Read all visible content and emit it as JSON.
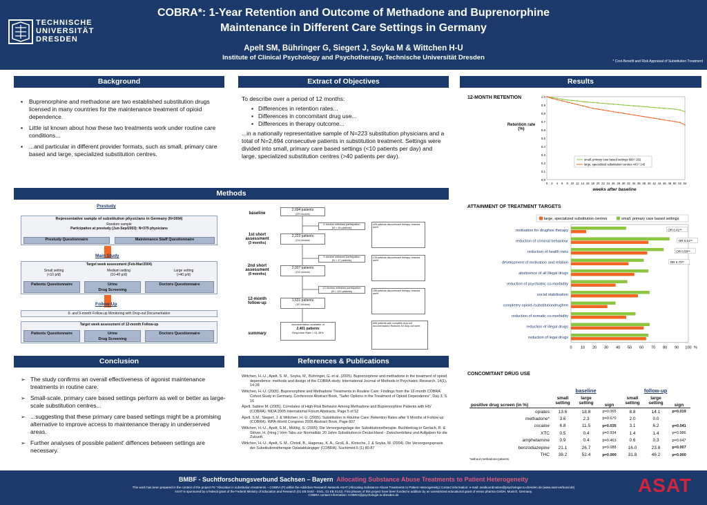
{
  "header": {
    "logo_lines": [
      "TECHNISCHE",
      "UNIVERSITÄT",
      "DRESDEN"
    ],
    "title_line1": "COBRA*: 1-Year Retention and Outcome of Methadone and Buprenorphine",
    "title_line2": "Maintenance in Different Care Settings in Germany",
    "authors": "Apelt SM, Bühringer G, Siegert J, Soyka M &  Wittchen H-U",
    "institute": "Institute of Clinical Psychology and Psychotherapy, Technische Universität Dresden",
    "footnote": "* Cost-Benefit and Risk Appraisal of Substitution Treatment"
  },
  "background": {
    "title": "Background",
    "bullets": [
      "Buprenorphine and methadone are two established substitution drugs licensed in many countries for the maintenance treatment of opioid dependence.",
      "Little ist known about how these two treatments work under routine care conditions...",
      "...and particular in different provider formats, such as small, primary care based and large, specialized substitution centres."
    ]
  },
  "objectives": {
    "title": "Extract of Objectives",
    "intro": "To describe over a period of 12 months:",
    "items": [
      "Differences in retention rates...",
      "Differences in concomitant drug use...",
      "Differences in therapy outcome..."
    ],
    "text": "...in a nationally representative sample of N=223 substitution physicians and a total of N=2,694 consecutive patients in substitution treatment. Settings were divided into small, primary care based settings (<10 patients per day) and large, specialized substitution centres (>40 patients per day)."
  },
  "methods": {
    "title": "Methods",
    "prestudy": "Prestudy",
    "rep_sample_title": "Representative sample of substitution physicians in Germany",
    "rep_sample_n": "(N=2694)",
    "random_sample": "Random sample",
    "participation": "Participation at prestudy (Jun-Sep/2003): N=379 physicians",
    "prestudy_q": "Prestudy Questionnaire",
    "maintenance_q": "Maintenance Staff Questionnaire",
    "mainstudy": "Main Study",
    "target_week": "Target week assessment (Feb-Mar/2004)",
    "small_setting": "Small setting",
    "small_n": "(<10 p/d)",
    "medium_setting": "Medium setting",
    "medium_n": "(10-40 p/d)",
    "large_setting": "Large setting",
    "large_n": "(>40 p/d)",
    "patients_q": "Patients Questionnaire",
    "urine": "Urine",
    "drug_screening": "Drug Screening",
    "doctors_q": "Doctors Questionnaire",
    "followup": "Follow-Up",
    "followup_doc": "6- and 9-month Follow-up Monitoring with Drop-out Documentation",
    "target_12": "Target week assessment of 12-month Follow-up",
    "flow": {
      "baseline": "baseline",
      "first_short": "1st short assessment",
      "first_months": "(3 months)",
      "second_short": "2nd short assessment",
      "second_months": "(6 months)",
      "twelve": "12-month follow-up",
      "summary": "summary",
      "n_baseline": "2,694 patients",
      "n_baseline_sub": "(223 doctors)",
      "n_first": "2,223 patients",
      "n_first_sub": "(214 doctors)",
      "n_second": "2,007 patients",
      "n_second_sub": "(210 doctors)",
      "n_twelve": "1,631 patients",
      "n_twelve_sub": "(197 doctors)",
      "withdraw1": "6 doctors withdraw participation",
      "withdraw1_n": "(N = 26 patients)",
      "withdraw2": "9 doctors withdraw participation",
      "withdraw2_n": "(N = 47 patients)",
      "withdraw3": "12 doctors withdraw participation",
      "withdraw3_n": "(N = 120 patients)",
      "doc_available": "documentation available of",
      "n_summary": "2,461 patients",
      "response": "Response Rate = 91.35%",
      "note1": "445 patients discontinued therapy, reasons were:",
      "note2": "216 patients discontinued therapy, reasons were:",
      "note3": "256 patients discontinued therapy, reasons were:",
      "note4": "666 patients with complete drop-out documentation! Reasons for drop-out were:"
    }
  },
  "conclusion": {
    "title": "Conclusion",
    "bullets": [
      "The study confirms an overall effectiveness of agonist maintenance treatments in routine care.",
      "Small-scale, primary care based settings perform as well or better as large-scale substitution centres...",
      "...suggesting that these primary care based settings might be a promising alternative to improve access to maintenance therapy in underserved areas.",
      "Further analyses of possible patient' diffences between settings are necessary."
    ]
  },
  "references": {
    "title": "References & Publications",
    "items": [
      "Wittchen, H.-U., Apelt, S. M., Soyka, M., Bühringer, G. et al.  (2005). Buprenorphine and methadone in the treatment of opioid dependence: methods and design of the COBRA study. International Journal of Methods in Psychiatric Research, 14(1), 14-28",
      "Wittchen, H.-U. (2005). Buprenorphine and Methadone Treatments in Routine Care: Findings from the 12-month COBRA Cohort Study in Germany. Conference Abstract Book, \"Safer Options in the Treatment of Opioid Dependence\", Day 3, S. 16",
      "Apelt, Sabine M. (2005). Correlates of High-Risk Behavior Among Methadone and Buprenorphine Patients with HIV (COBRA). NIDA 2005 International Forum Abstracts, Page 5 of 52",
      "Apelt, S.M., Siegert, J. & Wittchen, H.-U. (2005). Substitution in Routine Care: Retention Rates after 9 Months of Follow-up (COBRA). WPA-World Congress 2005 Abstract Book, Page 607",
      "Wittchen, H.-U., Apelt, S.M., Mühlig, S. (2005). Die Versorgungslage der Substitutionstherapie. Buchbeitrag in Gerlach, R. & Stöver, H. (Hrsg.) Vom Tabu zur Normalität: 20 Jahre Substitution in Deutschland - Zwischenbilanz und Aufgaben für die Zukunft.",
      "Wittchen, H.-U., Apelt, S. M., Christl, B., Hagenau, K. A., Groß, A., Klotsche, J. & Soyka, M. (2004). Die Versorgungspraxis der Substitutionstherapie Opiatabhängiger (COBRA). Suchtmed 6 (1) 80-87"
    ]
  },
  "results": {
    "title": "Results",
    "retention_title": "12-MONTH RETENTION",
    "retention_ylabel": "Retention rate (%)",
    "retention_xlabel": "weeks after baseline",
    "attainment_title": "ATTAINMENT OF TREATMENT TARGETS",
    "or_labels": [
      "OR 0.41**",
      "OR 0.51**",
      "OR 0.58**",
      "OR 0.73**"
    ],
    "concomitant_title": "CONCOMITANT DRUG USE",
    "table": {
      "group_baseline": "baseline",
      "group_followup": "follow-up",
      "col_label": "positive drug screen (in %)",
      "col_small": "small setting",
      "col_large": "large setting",
      "col_sign": "sign",
      "rows": [
        {
          "drug": "opiates",
          "b_small": "13.6",
          "b_large": "18.8",
          "b_sign": "p=0.065",
          "f_small": "8.8",
          "f_large": "14.1",
          "f_sign": "p=0.019"
        },
        {
          "drug": "methadone*",
          "b_small": "3.6",
          "b_large": "2.3",
          "b_sign": "p=0.670",
          "f_small": "2.0",
          "f_large": "0.0",
          "f_sign": ""
        },
        {
          "drug": "cocaine",
          "b_small": "6.8",
          "b_large": "11.5",
          "b_sign": "p=0.035",
          "f_small": "3.1",
          "f_large": "6.2",
          "f_sign": "p=0.041"
        },
        {
          "drug": "XTC",
          "b_small": "0.5",
          "b_large": "0.4",
          "b_sign": "p=0.934",
          "f_small": "1.4",
          "f_large": "1.4",
          "f_sign": "p=0.986"
        },
        {
          "drug": "amphetamine",
          "b_small": "0.9",
          "b_large": "0.4",
          "b_sign": "p=0.463",
          "f_small": "0.6",
          "f_large": "0.3",
          "f_sign": "p=0.647"
        },
        {
          "drug": "benzodiazepine",
          "b_small": "21.1",
          "b_large": "26.7",
          "b_sign": "p=0.088",
          "f_small": "16.0",
          "f_large": "23.8",
          "f_sign": "p=0.007"
        },
        {
          "drug": "THC",
          "b_small": "38.2",
          "b_large": "52.4",
          "b_sign": "p=0.000",
          "f_small": "31.8",
          "f_large": "46.2",
          "f_sign": "p=0.000"
        }
      ],
      "footnote": "*without methadone-patients"
    }
  },
  "footer": {
    "line1a": "BMBF - Suchtforschungsverbund Sachsen – Bayern",
    "line1b": "Allocating Substance Abuse Treatments to Patient Heterogeneity",
    "line2": "This work has been prepared in the context of the project F5 \"Allocation in substitution treatments – COBRA (P) within the Addiction Research Network ASAT (Allocating Substance Abuse Treatments to Patient Heterogeneity) Contact information: e-mail: asatkoordination@psychologie.tu-dresden.de (www.asat-verbund.de)",
    "line3": "ASAT is sponsored by a federal grant of the Federal Ministry of Education and Research  (01 EB 0440 - 0441, 01 EB 0142). First phases of  this project have been funded in addition by an unrestricted educational grant of essex pharma GmbH, Munich, Germany.",
    "line4": "COBRA contact information: COBRA@psychologie.tu-dresden.de",
    "asat": "ASAT"
  },
  "chart_data": [
    {
      "type": "line",
      "title": "12-MONTH RETENTION",
      "xlabel": "weeks after baseline",
      "ylabel": "Retention rate (%)",
      "ylim": [
        0,
        1.0
      ],
      "xlim": [
        0,
        54
      ],
      "yticks": [
        "0.0",
        "0.1",
        "0.2",
        "0.3",
        "0.4",
        "0.5",
        "0.6",
        "0.7",
        "0.8",
        "0.9",
        "1.0"
      ],
      "xticks": [
        "0",
        "2",
        "4",
        "6",
        "8",
        "10",
        "12",
        "14",
        "16",
        "18",
        "20",
        "22",
        "24",
        "26",
        "28",
        "30",
        "32",
        "34",
        "36",
        "38",
        "40",
        "42",
        "44",
        "46",
        "48",
        "50",
        "52",
        "54"
      ],
      "x": [
        0,
        2,
        4,
        6,
        8,
        10,
        12,
        14,
        16,
        18,
        20,
        22,
        24,
        26,
        28,
        30,
        32,
        34,
        36,
        38,
        40,
        42,
        44,
        46,
        48,
        50,
        52,
        54
      ],
      "series": [
        {
          "name": "small, primary care based settings 699 / 162",
          "color": "#8cc63f",
          "values": [
            1.0,
            0.99,
            0.98,
            0.97,
            0.96,
            0.955,
            0.95,
            0.94,
            0.935,
            0.93,
            0.925,
            0.92,
            0.915,
            0.91,
            0.905,
            0.9,
            0.895,
            0.89,
            0.885,
            0.88,
            0.875,
            0.87,
            0.865,
            0.86,
            0.855,
            0.85,
            0.84,
            0.82
          ]
        },
        {
          "name": "large, specialized substitution centres 443 / 145",
          "color": "#f26522",
          "values": [
            1.0,
            0.98,
            0.965,
            0.95,
            0.935,
            0.92,
            0.905,
            0.89,
            0.875,
            0.86,
            0.85,
            0.84,
            0.83,
            0.82,
            0.81,
            0.8,
            0.79,
            0.78,
            0.77,
            0.76,
            0.75,
            0.74,
            0.73,
            0.72,
            0.71,
            0.7,
            0.69,
            0.66
          ]
        }
      ],
      "legend": "bottom-right",
      "grid": false
    },
    {
      "type": "bar",
      "orientation": "horizontal",
      "title": "ATTAINMENT OF TREATMENT TARGETS",
      "xlim": [
        0,
        100
      ],
      "xticks": [
        "0",
        "10",
        "20",
        "30",
        "40",
        "50",
        "60",
        "70",
        "80",
        "90",
        "100"
      ],
      "xunit": "%",
      "categories": [
        "motivation for drugfree therapy",
        "reduction of criminal behaviour",
        "reduction of health risks",
        "development of motivation and relation",
        "abstinence of all illegal drugs",
        "reduction of psychiatric co-morbidity",
        "social stabilisation",
        "completey opioid-/substitutiondrugfree",
        "reduction of somatic co-morbidity",
        "reduction of illegal drugs",
        "reduction of legal drugs"
      ],
      "series": [
        {
          "name": "large, specialized substitution centres",
          "color": "#f26522",
          "values": [
            13,
            66,
            65,
            49,
            54,
            38,
            57,
            31,
            47,
            62,
            64
          ]
        },
        {
          "name": "small, primary care based settings",
          "color": "#8cc63f",
          "values": [
            47,
            84,
            79,
            62,
            66,
            48,
            67,
            38,
            55,
            67,
            66
          ]
        }
      ],
      "annotations": [
        "OR 0.41**",
        "OR 0.51**",
        "OR 0.58**",
        "OR 0.73**"
      ],
      "legend": "top",
      "grid": false
    }
  ]
}
